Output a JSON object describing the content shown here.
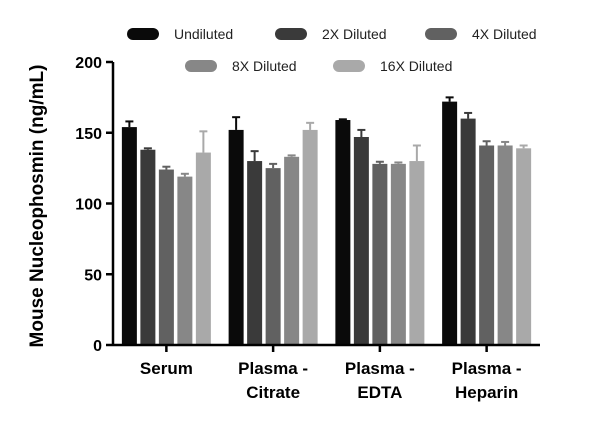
{
  "chart_data": {
    "type": "bar",
    "title": "",
    "xlabel": "",
    "ylabel": "Mouse Nucleophosmin (ng/mL)",
    "ylim": [
      0,
      200
    ],
    "yticks": [
      0,
      50,
      100,
      150,
      200
    ],
    "grid": false,
    "legend_position": "top",
    "categories": [
      [
        "Serum"
      ],
      [
        "Plasma -",
        "Citrate"
      ],
      [
        "Plasma -",
        "EDTA"
      ],
      [
        "Plasma -",
        "Heparin"
      ]
    ],
    "series": [
      {
        "name": "Undiluted",
        "color": "#0a0a0a",
        "values": [
          154,
          152,
          159,
          172
        ],
        "errors": [
          4,
          9,
          0.5,
          3
        ]
      },
      {
        "name": "2X Diluted",
        "color": "#3a3a3a",
        "values": [
          138,
          130,
          147,
          160
        ],
        "errors": [
          1,
          7,
          5,
          4
        ]
      },
      {
        "name": "4X Diluted",
        "color": "#616161",
        "values": [
          124,
          125,
          128,
          141
        ],
        "errors": [
          2,
          3,
          1.5,
          3
        ]
      },
      {
        "name": "8X Diluted",
        "color": "#878787",
        "values": [
          119,
          133,
          128,
          141
        ],
        "errors": [
          2,
          1,
          1,
          2.5
        ]
      },
      {
        "name": "16X Diluted",
        "color": "#a9a9a9",
        "values": [
          136,
          152,
          130,
          139
        ],
        "errors": [
          15,
          5,
          11,
          2
        ]
      }
    ]
  }
}
